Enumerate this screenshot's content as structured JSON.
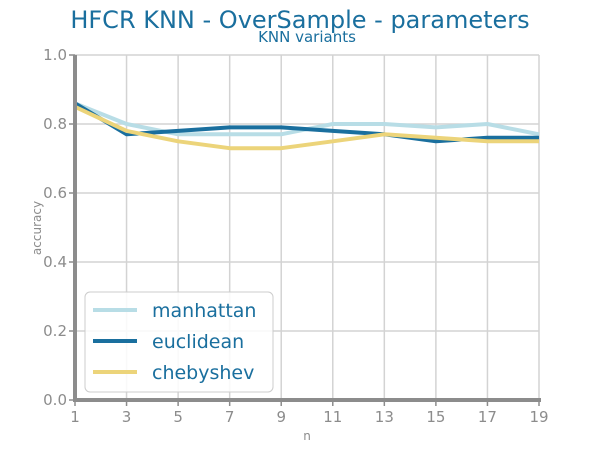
{
  "chart_data": {
    "type": "line",
    "title": "HFCR KNN - OverSample - parameters",
    "subtitle": "KNN variants",
    "xlabel": "n",
    "ylabel": "accuracy",
    "x": [
      1,
      3,
      5,
      7,
      9,
      11,
      13,
      15,
      17,
      19
    ],
    "xticks": [
      "1",
      "3",
      "5",
      "7",
      "9",
      "11",
      "13",
      "15",
      "17",
      "19"
    ],
    "yticks": [
      "0.0",
      "0.2",
      "0.4",
      "0.6",
      "0.8",
      "1.0"
    ],
    "xlim": [
      1,
      19
    ],
    "ylim": [
      0,
      1
    ],
    "grid": true,
    "legend_position": "lower-left",
    "series": [
      {
        "name": "manhattan",
        "color": "#b8dde6",
        "values": [
          0.86,
          0.8,
          0.77,
          0.77,
          0.77,
          0.8,
          0.8,
          0.79,
          0.8,
          0.77
        ]
      },
      {
        "name": "euclidean",
        "color": "#1a6f9e",
        "values": [
          0.86,
          0.77,
          0.78,
          0.79,
          0.79,
          0.78,
          0.77,
          0.75,
          0.76,
          0.76
        ]
      },
      {
        "name": "chebyshev",
        "color": "#ecd47a",
        "values": [
          0.85,
          0.78,
          0.75,
          0.73,
          0.73,
          0.75,
          0.77,
          0.76,
          0.75,
          0.75
        ]
      }
    ]
  }
}
